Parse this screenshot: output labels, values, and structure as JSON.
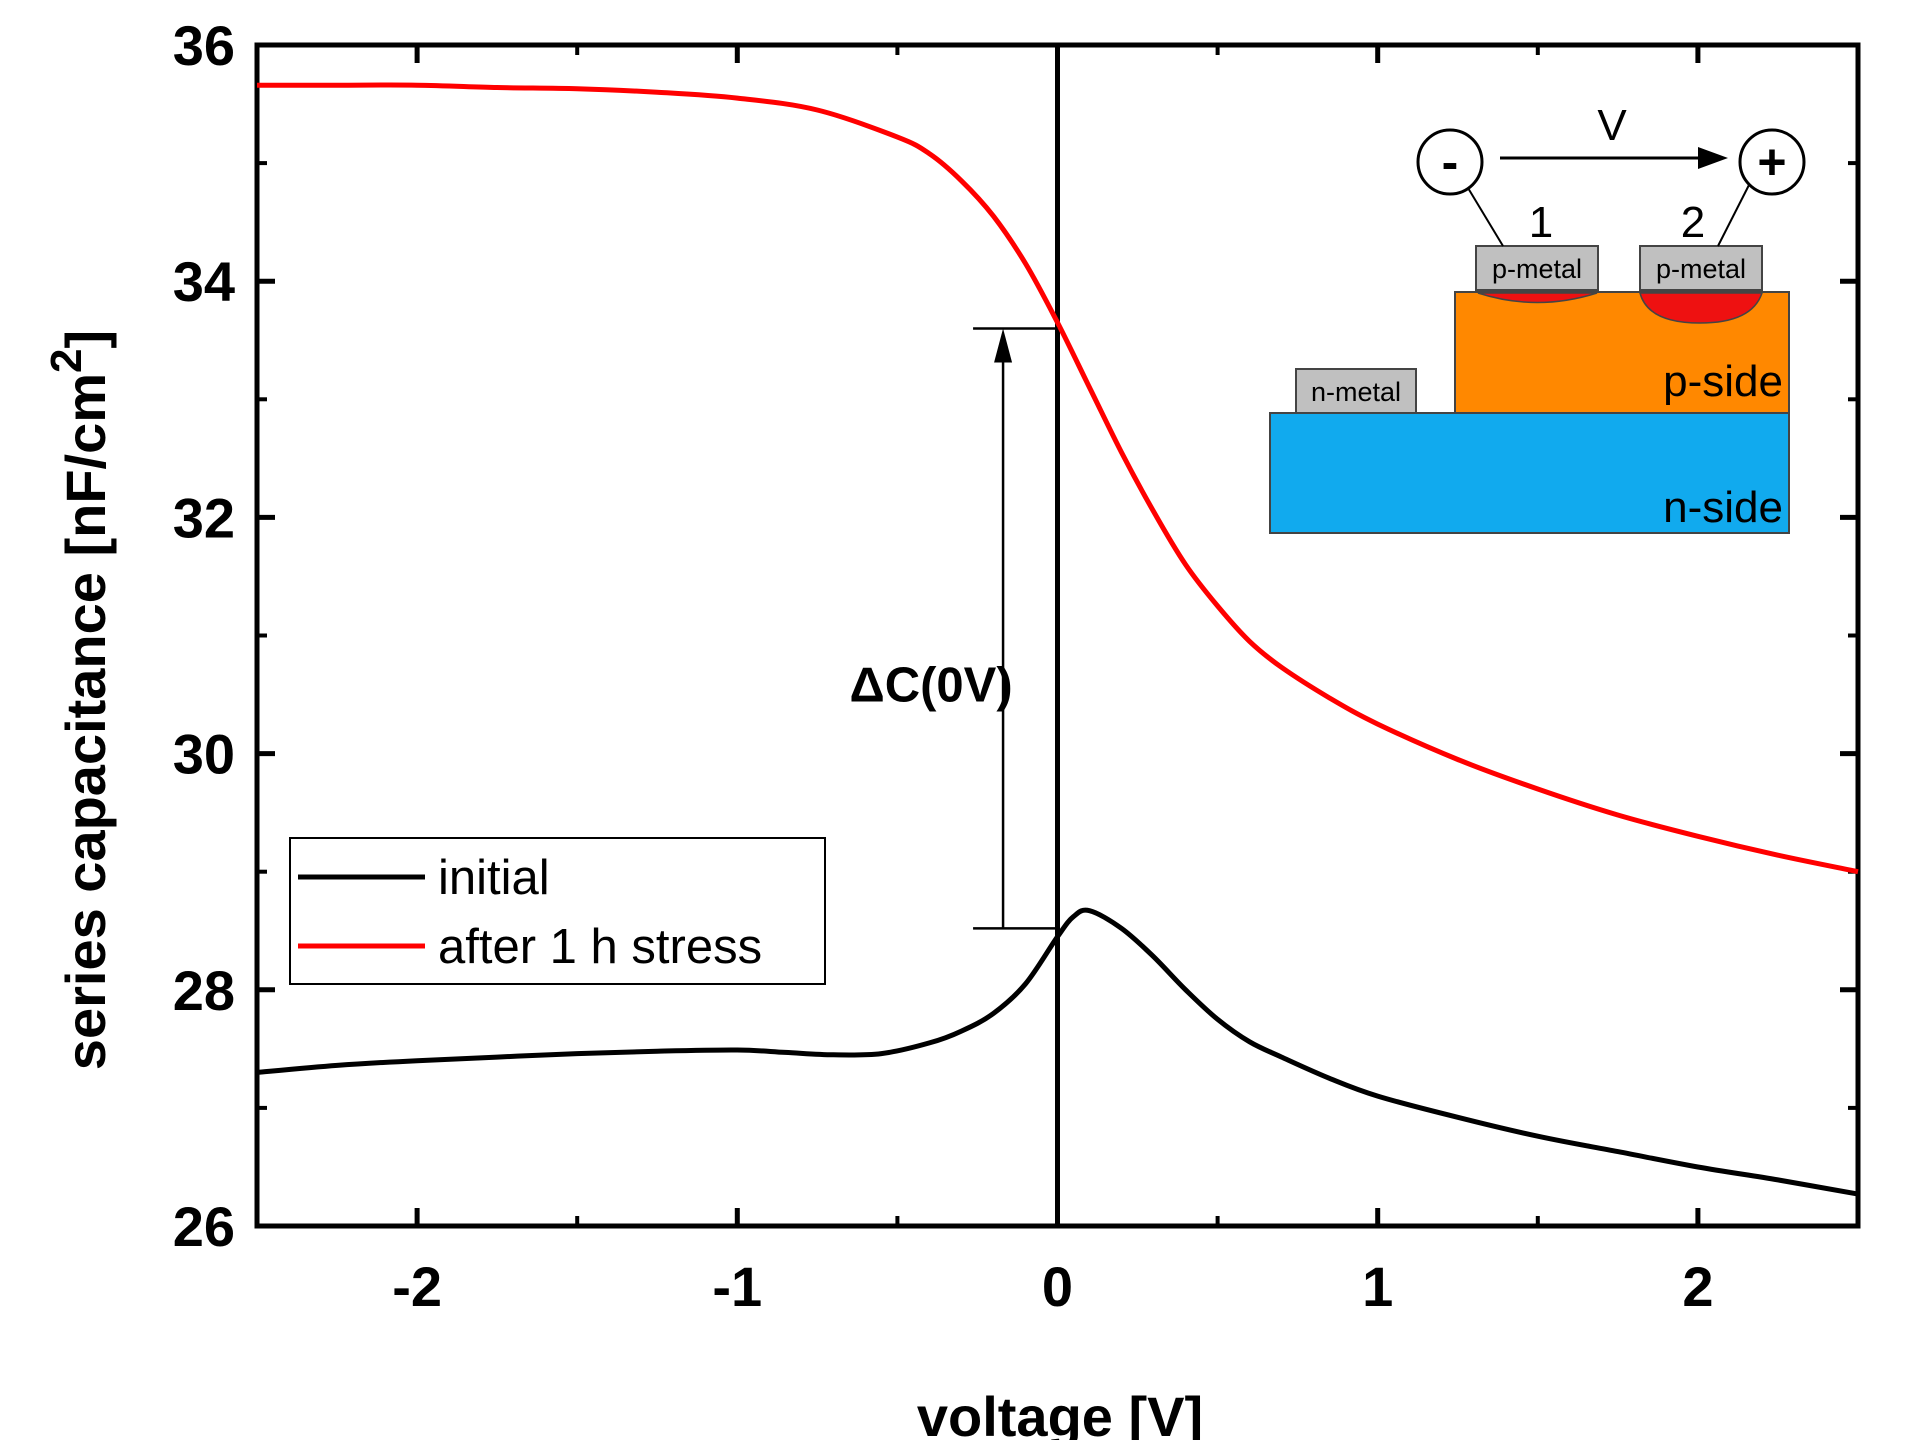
{
  "chart_data": {
    "type": "line",
    "xlabel": "voltage [V]",
    "ylabel": "series capacitance [nF/cm",
    "ylabel_sup": "2",
    "ylabel_end": "]",
    "xlim": [
      -2.5,
      2.5
    ],
    "ylim": [
      26,
      36
    ],
    "x_ticks": [
      -2,
      -1,
      0,
      1,
      2
    ],
    "x_tick_labels": [
      "-2",
      "-1",
      "0",
      "1",
      "2"
    ],
    "y_ticks": [
      26,
      28,
      30,
      32,
      34,
      36
    ],
    "y_tick_labels": [
      "26",
      "28",
      "30",
      "32",
      "34",
      "36"
    ],
    "grid": false,
    "legend_position": "bottom-left",
    "series": [
      {
        "name": "initial",
        "color": "#000000",
        "x": [
          -2.5,
          -2.25,
          -2.0,
          -1.75,
          -1.5,
          -1.25,
          -1.0,
          -0.85,
          -0.7,
          -0.55,
          -0.4,
          -0.3,
          -0.2,
          -0.1,
          0.0,
          0.05,
          0.1,
          0.2,
          0.3,
          0.4,
          0.5,
          0.6,
          0.7,
          0.85,
          1.0,
          1.25,
          1.5,
          1.75,
          2.0,
          2.25,
          2.5
        ],
        "y": [
          27.3,
          27.36,
          27.4,
          27.43,
          27.46,
          27.48,
          27.49,
          27.47,
          27.45,
          27.46,
          27.55,
          27.65,
          27.8,
          28.05,
          28.45,
          28.62,
          28.67,
          28.52,
          28.28,
          28.0,
          27.75,
          27.56,
          27.43,
          27.25,
          27.1,
          26.92,
          26.76,
          26.63,
          26.5,
          26.39,
          26.27
        ]
      },
      {
        "name": "after 1 h stress",
        "color": "#ff0000",
        "x": [
          -2.5,
          -2.25,
          -2.0,
          -1.75,
          -1.5,
          -1.25,
          -1.0,
          -0.75,
          -0.5,
          -0.4,
          -0.3,
          -0.2,
          -0.1,
          0.0,
          0.1,
          0.2,
          0.3,
          0.4,
          0.5,
          0.6,
          0.7,
          0.85,
          1.0,
          1.25,
          1.5,
          1.75,
          2.0,
          2.25,
          2.5
        ],
        "y": [
          35.66,
          35.66,
          35.66,
          35.64,
          35.63,
          35.6,
          35.55,
          35.45,
          35.22,
          35.08,
          34.85,
          34.55,
          34.15,
          33.65,
          33.1,
          32.55,
          32.05,
          31.6,
          31.25,
          30.95,
          30.73,
          30.47,
          30.25,
          29.95,
          29.7,
          29.48,
          29.3,
          29.14,
          29.0
        ]
      }
    ],
    "annotation": {
      "label": "ΔC(0V)",
      "x": -0.17,
      "y_from": 28.52,
      "y_to": 33.6
    },
    "inset": {
      "voltage_label": "V",
      "minus_sign": "-",
      "plus_sign": "+",
      "contact1": "1",
      "contact2": "2",
      "p_metal_1": "p-metal",
      "p_metal_2": "p-metal",
      "n_metal": "n-metal",
      "p_side": "p-side",
      "n_side": "n-side",
      "p_side_color": "#ff8800",
      "n_side_color": "#11aaee",
      "metal_color": "#c0c0c0",
      "degraded_color": "#ee1111"
    }
  }
}
